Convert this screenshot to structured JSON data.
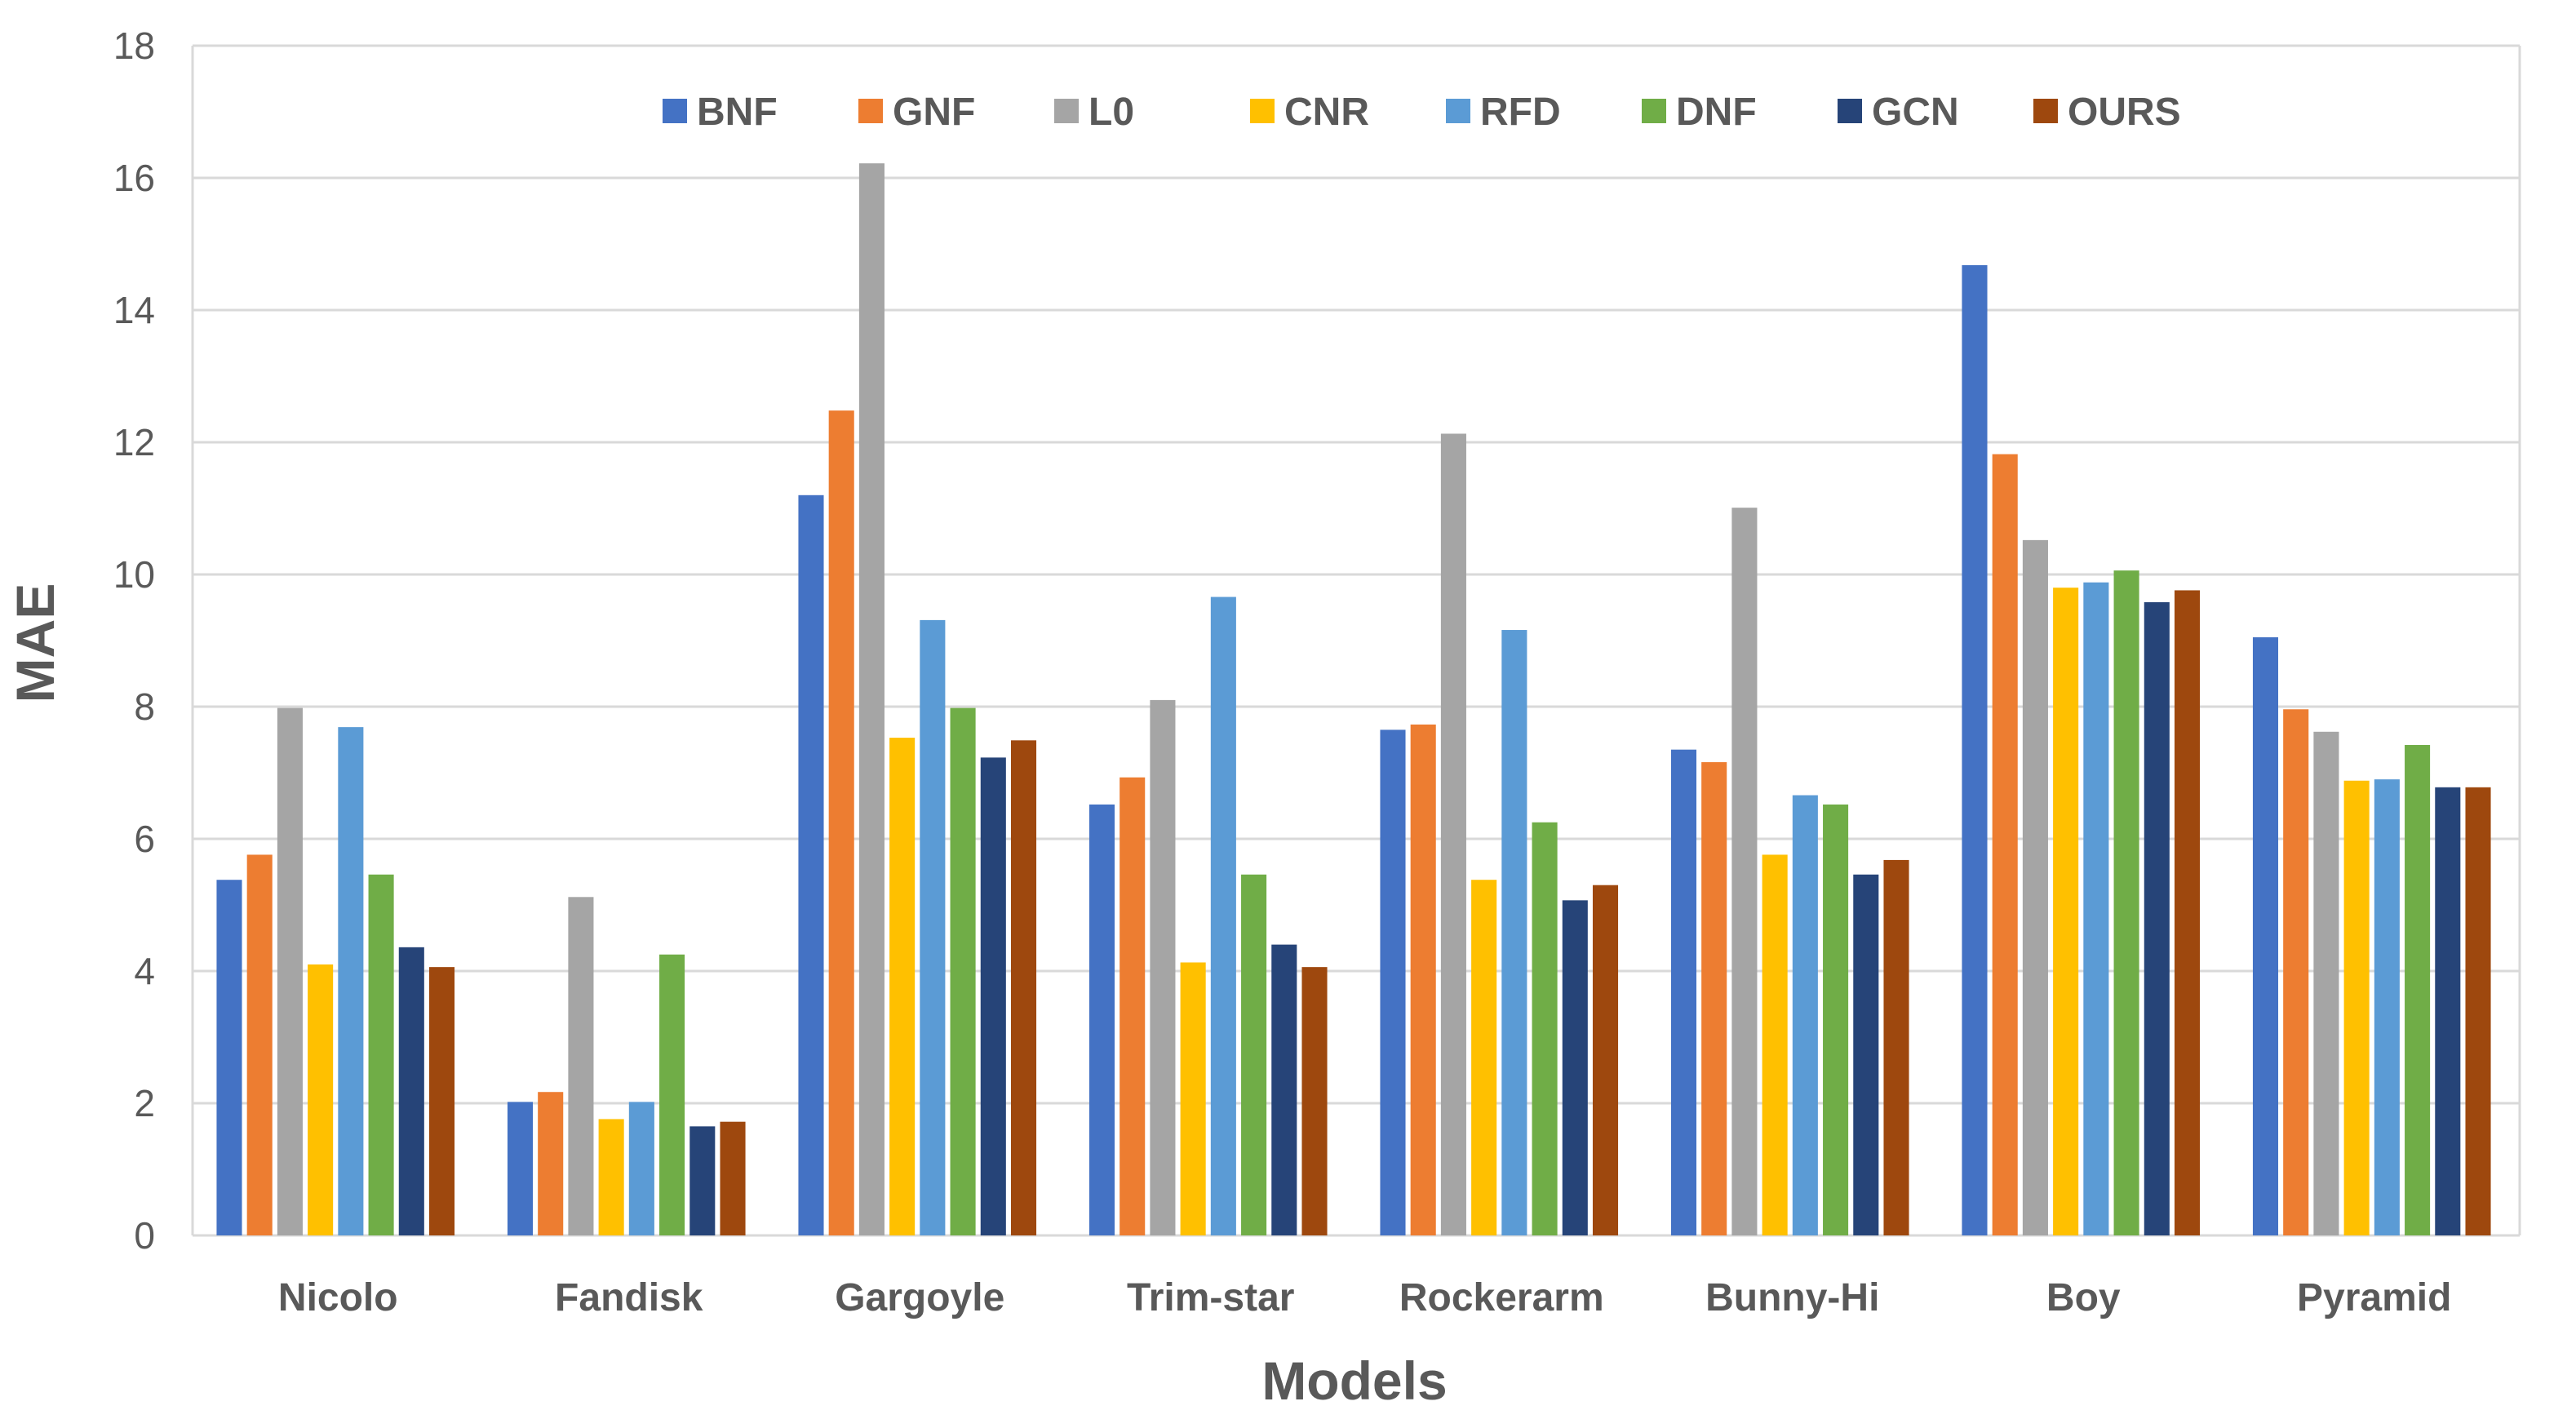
{
  "chart_data": {
    "type": "bar",
    "title": "",
    "xlabel": "Models",
    "ylabel": "MAE",
    "ylim": [
      0,
      18
    ],
    "yticks": [
      0,
      2,
      4,
      6,
      8,
      10,
      12,
      14,
      16,
      18
    ],
    "grid": true,
    "legend_position": "top-center",
    "categories": [
      "Nicolo",
      "Fandisk",
      "Gargoyle",
      "Trim-star",
      "Rockerarm",
      "Bunny-Hi",
      "Boy",
      "Pyramid"
    ],
    "series": [
      {
        "name": "BNF",
        "color": "#4472C4",
        "values": [
          5.38,
          2.02,
          11.2,
          6.52,
          7.65,
          7.35,
          14.68,
          9.05
        ]
      },
      {
        "name": "GNF",
        "color": "#ED7D31",
        "values": [
          5.76,
          2.17,
          12.48,
          6.93,
          7.73,
          7.16,
          11.82,
          7.96
        ]
      },
      {
        "name": "L0",
        "color": "#A5A5A5",
        "values": [
          7.98,
          5.12,
          16.22,
          8.1,
          12.13,
          11.01,
          10.52,
          7.62
        ]
      },
      {
        "name": "CNR",
        "color": "#FFC000",
        "values": [
          4.1,
          1.76,
          7.53,
          4.13,
          5.38,
          5.76,
          9.8,
          6.88
        ]
      },
      {
        "name": "RFD",
        "color": "#5B9BD5",
        "values": [
          7.69,
          2.02,
          9.31,
          9.66,
          9.16,
          6.66,
          9.88,
          6.9
        ]
      },
      {
        "name": "DNF",
        "color": "#70AD47",
        "values": [
          5.46,
          4.25,
          7.98,
          5.46,
          6.25,
          6.52,
          10.06,
          7.42
        ]
      },
      {
        "name": "GCN",
        "color": "#264478",
        "values": [
          4.36,
          1.65,
          7.23,
          4.4,
          5.07,
          5.46,
          9.58,
          6.78
        ]
      },
      {
        "name": "OURS",
        "color": "#9E480E",
        "values": [
          4.06,
          1.72,
          7.49,
          4.06,
          5.3,
          5.68,
          9.76,
          6.78
        ]
      }
    ]
  }
}
